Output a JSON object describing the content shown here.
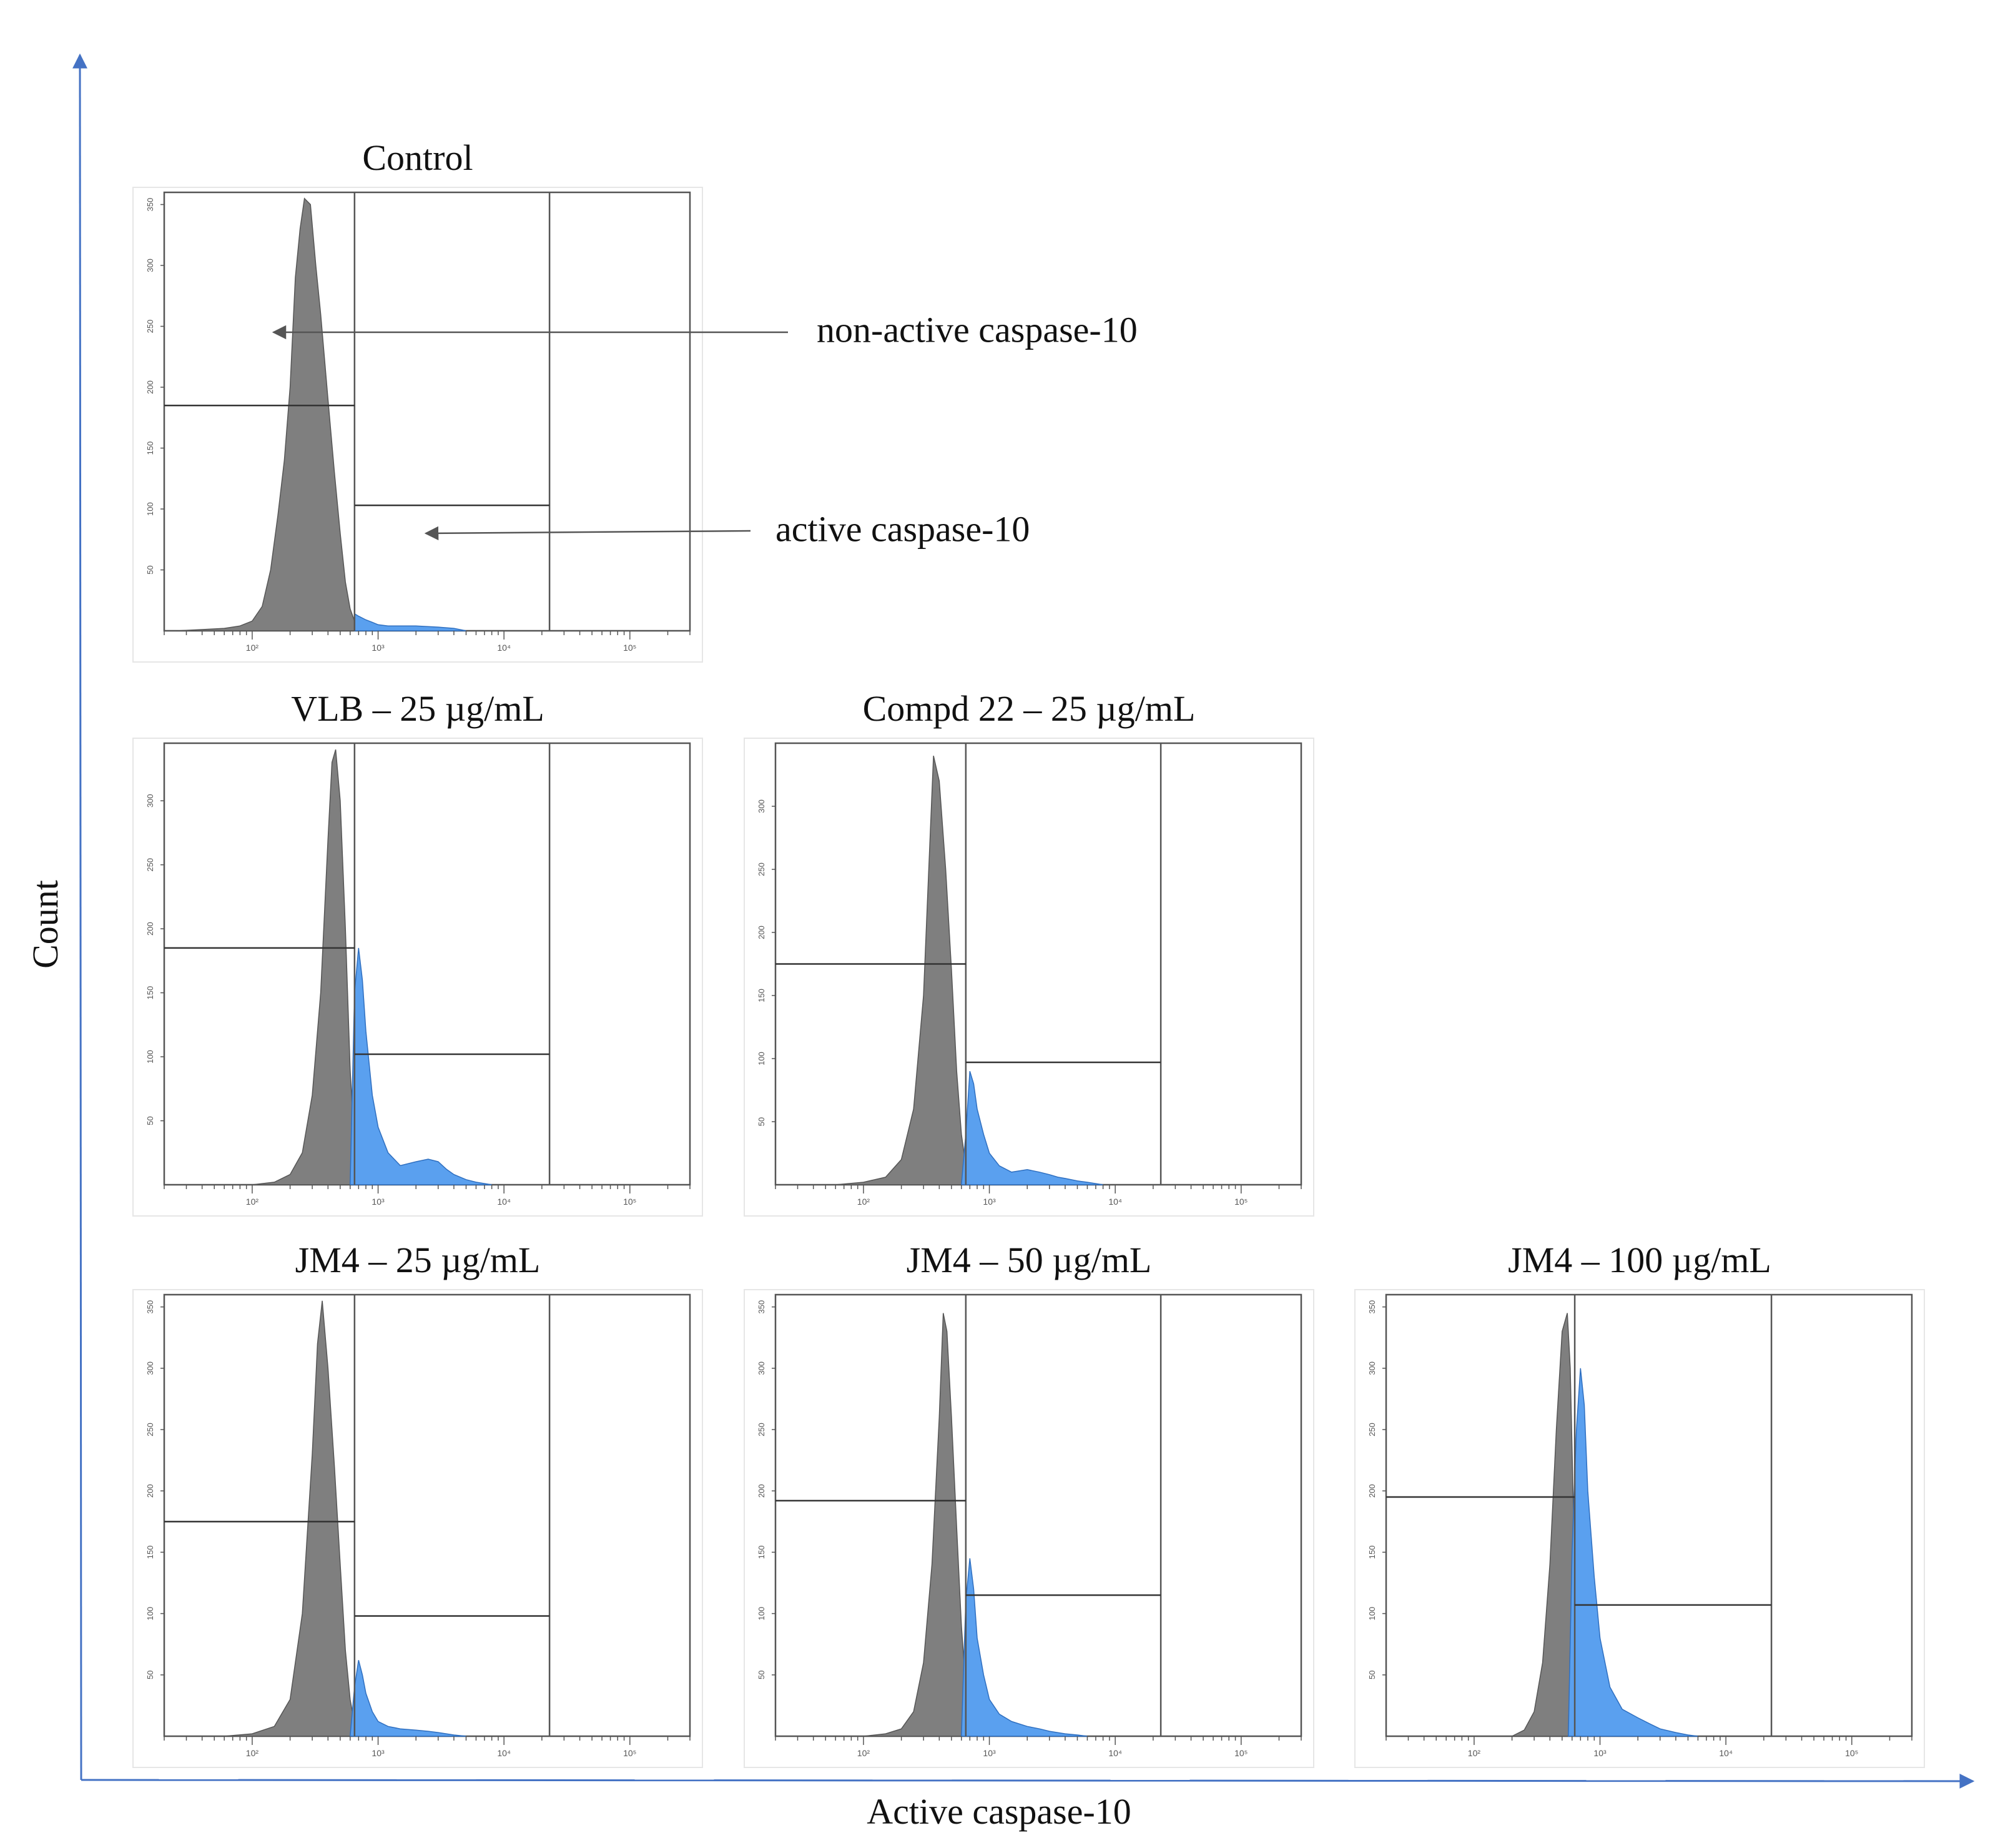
{
  "figure": {
    "y_axis_label": "Count",
    "x_axis_label": "Active caspase-10",
    "annotation_non_active": "non-active caspase-10",
    "annotation_active": "active caspase-10",
    "colors": {
      "negative": "#7f7f7f",
      "positive": "#5aa0ef",
      "axis": "#4472c4",
      "frame": "#555555"
    }
  },
  "chart_data": [
    {
      "type": "area",
      "title": "Control",
      "x_scale": "log",
      "xlim": [
        20,
        300000
      ],
      "ylim": [
        0,
        360
      ],
      "y_ticks": [
        50,
        100,
        150,
        200,
        250,
        300,
        350
      ],
      "x_ticks": [
        "10²",
        "10³",
        "10⁴",
        "10⁵"
      ],
      "gate_x": 650,
      "gate_end_x": 23000,
      "marker_left_y": 185,
      "marker_right_y": 103,
      "series": [
        {
          "name": "non-active caspase-10",
          "x": [
            25,
            40,
            60,
            80,
            100,
            120,
            140,
            160,
            180,
            200,
            220,
            240,
            260,
            290,
            320,
            350,
            400,
            450,
            500,
            550,
            600,
            650
          ],
          "y": [
            0,
            1,
            2,
            4,
            8,
            20,
            50,
            95,
            140,
            200,
            290,
            330,
            355,
            350,
            300,
            260,
            190,
            130,
            80,
            40,
            18,
            8
          ]
        },
        {
          "name": "active caspase-10",
          "x": [
            650,
            700,
            800,
            900,
            1000,
            1200,
            1500,
            2000,
            3000,
            4000,
            5000
          ],
          "y": [
            14,
            12,
            9,
            7,
            5,
            4,
            4,
            4,
            3,
            2,
            0
          ]
        }
      ]
    },
    {
      "type": "area",
      "title": "VLB – 25 µg/mL",
      "x_scale": "log",
      "xlim": [
        20,
        300000
      ],
      "ylim": [
        0,
        345
      ],
      "y_ticks": [
        50,
        100,
        150,
        200,
        250,
        300
      ],
      "x_ticks": [
        "10²",
        "10³",
        "10⁴",
        "10⁵"
      ],
      "gate_x": 650,
      "gate_end_x": 23000,
      "marker_left_y": 185,
      "marker_right_y": 102,
      "series": [
        {
          "name": "non-active caspase-10",
          "x": [
            100,
            150,
            200,
            250,
            300,
            350,
            400,
            430,
            460,
            500,
            550,
            600,
            650
          ],
          "y": [
            0,
            2,
            8,
            25,
            70,
            150,
            270,
            330,
            340,
            300,
            200,
            90,
            30
          ]
        },
        {
          "name": "active caspase-10",
          "x": [
            600,
            650,
            700,
            750,
            800,
            900,
            1000,
            1200,
            1500,
            2000,
            2500,
            3000,
            3500,
            4000,
            5000,
            6000,
            8000
          ],
          "y": [
            0,
            150,
            185,
            160,
            120,
            70,
            45,
            25,
            15,
            18,
            20,
            18,
            12,
            8,
            4,
            2,
            0
          ]
        }
      ]
    },
    {
      "type": "area",
      "title": "Compd 22 – 25 µg/mL",
      "x_scale": "log",
      "xlim": [
        20,
        300000
      ],
      "ylim": [
        0,
        350
      ],
      "y_ticks": [
        50,
        100,
        150,
        200,
        250,
        300
      ],
      "x_ticks": [
        "10²",
        "10³",
        "10⁴",
        "10⁵"
      ],
      "gate_x": 650,
      "gate_end_x": 23000,
      "marker_left_y": 175,
      "marker_right_y": 97,
      "series": [
        {
          "name": "non-active caspase-10",
          "x": [
            60,
            100,
            150,
            200,
            250,
            300,
            330,
            360,
            400,
            450,
            500,
            550,
            600,
            650
          ],
          "y": [
            0,
            2,
            6,
            20,
            60,
            150,
            250,
            340,
            320,
            250,
            170,
            90,
            40,
            15
          ]
        },
        {
          "name": "active caspase-10",
          "x": [
            600,
            650,
            700,
            750,
            800,
            900,
            1000,
            1200,
            1500,
            2000,
            2500,
            3000,
            3500,
            4000,
            5000,
            6000,
            8000
          ],
          "y": [
            0,
            40,
            90,
            80,
            60,
            40,
            25,
            15,
            10,
            12,
            10,
            8,
            6,
            5,
            3,
            2,
            0
          ]
        }
      ]
    },
    {
      "type": "area",
      "title": "JM4 – 25 µg/mL",
      "x_scale": "log",
      "xlim": [
        20,
        300000
      ],
      "ylim": [
        0,
        360
      ],
      "y_ticks": [
        50,
        100,
        150,
        200,
        250,
        300,
        350
      ],
      "x_ticks": [
        "10²",
        "10³",
        "10⁴",
        "10⁵"
      ],
      "gate_x": 650,
      "gate_end_x": 23000,
      "marker_left_y": 175,
      "marker_right_y": 98,
      "series": [
        {
          "name": "non-active caspase-10",
          "x": [
            60,
            100,
            150,
            200,
            250,
            300,
            330,
            360,
            400,
            450,
            500,
            550,
            600,
            650
          ],
          "y": [
            0,
            2,
            8,
            30,
            100,
            230,
            320,
            355,
            300,
            220,
            140,
            70,
            30,
            10
          ]
        },
        {
          "name": "active caspase-10",
          "x": [
            600,
            650,
            700,
            750,
            800,
            900,
            1000,
            1200,
            1500,
            2000,
            2500,
            3000,
            4000,
            5000
          ],
          "y": [
            0,
            40,
            62,
            50,
            35,
            20,
            12,
            8,
            6,
            5,
            4,
            3,
            1,
            0
          ]
        }
      ]
    },
    {
      "type": "area",
      "title": "JM4 – 50 µg/mL",
      "x_scale": "log",
      "xlim": [
        20,
        300000
      ],
      "ylim": [
        0,
        360
      ],
      "y_ticks": [
        50,
        100,
        150,
        200,
        250,
        300,
        350
      ],
      "x_ticks": [
        "10²",
        "10³",
        "10⁴",
        "10⁵"
      ],
      "gate_x": 650,
      "gate_end_x": 23000,
      "marker_left_y": 192,
      "marker_right_y": 115,
      "series": [
        {
          "name": "non-active caspase-10",
          "x": [
            100,
            150,
            200,
            250,
            300,
            350,
            400,
            430,
            460,
            500,
            550,
            600,
            650
          ],
          "y": [
            0,
            2,
            6,
            20,
            60,
            140,
            260,
            345,
            330,
            260,
            170,
            90,
            40
          ]
        },
        {
          "name": "active caspase-10",
          "x": [
            600,
            650,
            700,
            750,
            800,
            900,
            1000,
            1200,
            1500,
            2000,
            2500,
            3000,
            4000,
            5000,
            6000
          ],
          "y": [
            0,
            110,
            145,
            120,
            80,
            50,
            30,
            18,
            12,
            8,
            6,
            4,
            2,
            1,
            0
          ]
        }
      ]
    },
    {
      "type": "area",
      "title": "JM4 – 100 µg/mL",
      "x_scale": "log",
      "xlim": [
        20,
        300000
      ],
      "ylim": [
        0,
        360
      ],
      "y_ticks": [
        50,
        100,
        150,
        200,
        250,
        300,
        350
      ],
      "x_ticks": [
        "10²",
        "10³",
        "10⁴",
        "10⁵"
      ],
      "gate_x": 630,
      "gate_end_x": 23000,
      "marker_left_y": 195,
      "marker_right_y": 107,
      "series": [
        {
          "name": "non-active caspase-10",
          "x": [
            200,
            250,
            300,
            350,
            400,
            450,
            500,
            550,
            580,
            610,
            630
          ],
          "y": [
            0,
            5,
            20,
            60,
            140,
            250,
            330,
            345,
            300,
            200,
            150
          ]
        },
        {
          "name": "active caspase-10",
          "x": [
            560,
            600,
            650,
            700,
            750,
            800,
            900,
            1000,
            1200,
            1500,
            2000,
            2500,
            3000,
            4000,
            5000,
            6000
          ],
          "y": [
            0,
            150,
            250,
            300,
            270,
            200,
            130,
            80,
            40,
            22,
            15,
            10,
            6,
            3,
            1,
            0
          ]
        }
      ]
    }
  ]
}
